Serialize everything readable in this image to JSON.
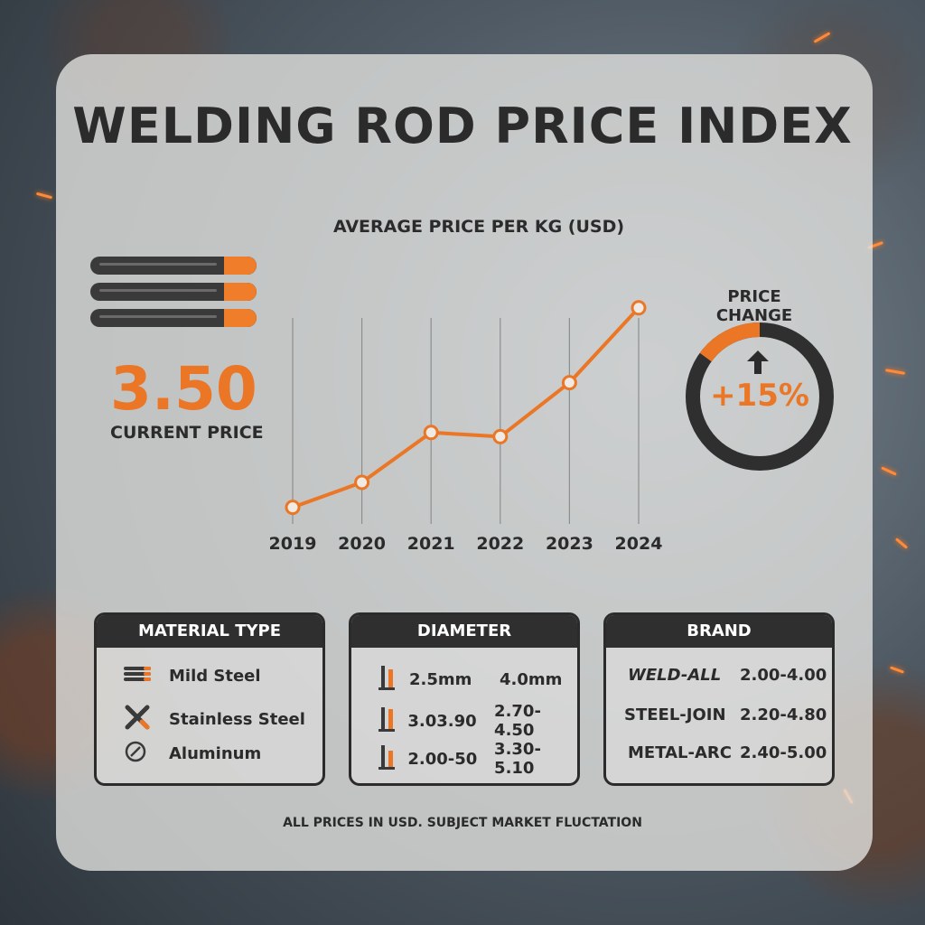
{
  "title": "WELDING ROD PRICE INDEX",
  "current": {
    "value": "3.50",
    "label": "CURRENT PRICE"
  },
  "chart_data": {
    "type": "line",
    "title": "AVERAGE PRICE PER KG (USD)",
    "x": [
      "2019",
      "2020",
      "2021",
      "2022",
      "2023",
      "2024"
    ],
    "series": [
      {
        "values": [
          2.1,
          2.4,
          3.0,
          2.95,
          3.6,
          4.5
        ]
      }
    ],
    "ylim": [
      1.9,
      4.9
    ],
    "grid": true,
    "color": "#ea7626"
  },
  "gauge": {
    "title": "PRICE CHANGE",
    "value": "+15%",
    "fraction": 0.15,
    "accent": "#ea7626"
  },
  "cards": {
    "material": {
      "header": "MATERIAL TYPE",
      "items": [
        {
          "label": "Mild Steel",
          "icon": "rods-icon"
        },
        {
          "label": "Stainless Steel",
          "icon": "crossed-rods-icon"
        },
        {
          "label": "Aluminum",
          "icon": "aluminum-circle-icon"
        }
      ]
    },
    "diameter": {
      "header": "DIAMETER",
      "rows": [
        {
          "a": "2.5mm",
          "b": "4.0mm"
        },
        {
          "a": "3.03.90",
          "b": "2.70-4.50"
        },
        {
          "a": "2.00-50",
          "b": "3.30-5.10"
        }
      ]
    },
    "brand": {
      "header": "BRAND",
      "rows": [
        {
          "name": "WELD-ALL",
          "range": "2.00-4.00"
        },
        {
          "name": "STEEL-JOIN",
          "range": "2.20-4.80"
        },
        {
          "name": "METAL-ARC",
          "range": "2.40-5.00"
        }
      ]
    }
  },
  "footer": "ALL PRICES IN USD. SUBJECT MARKET FLUCTATION",
  "colors": {
    "accent": "#ea7626",
    "dark": "#2b2b2b"
  }
}
